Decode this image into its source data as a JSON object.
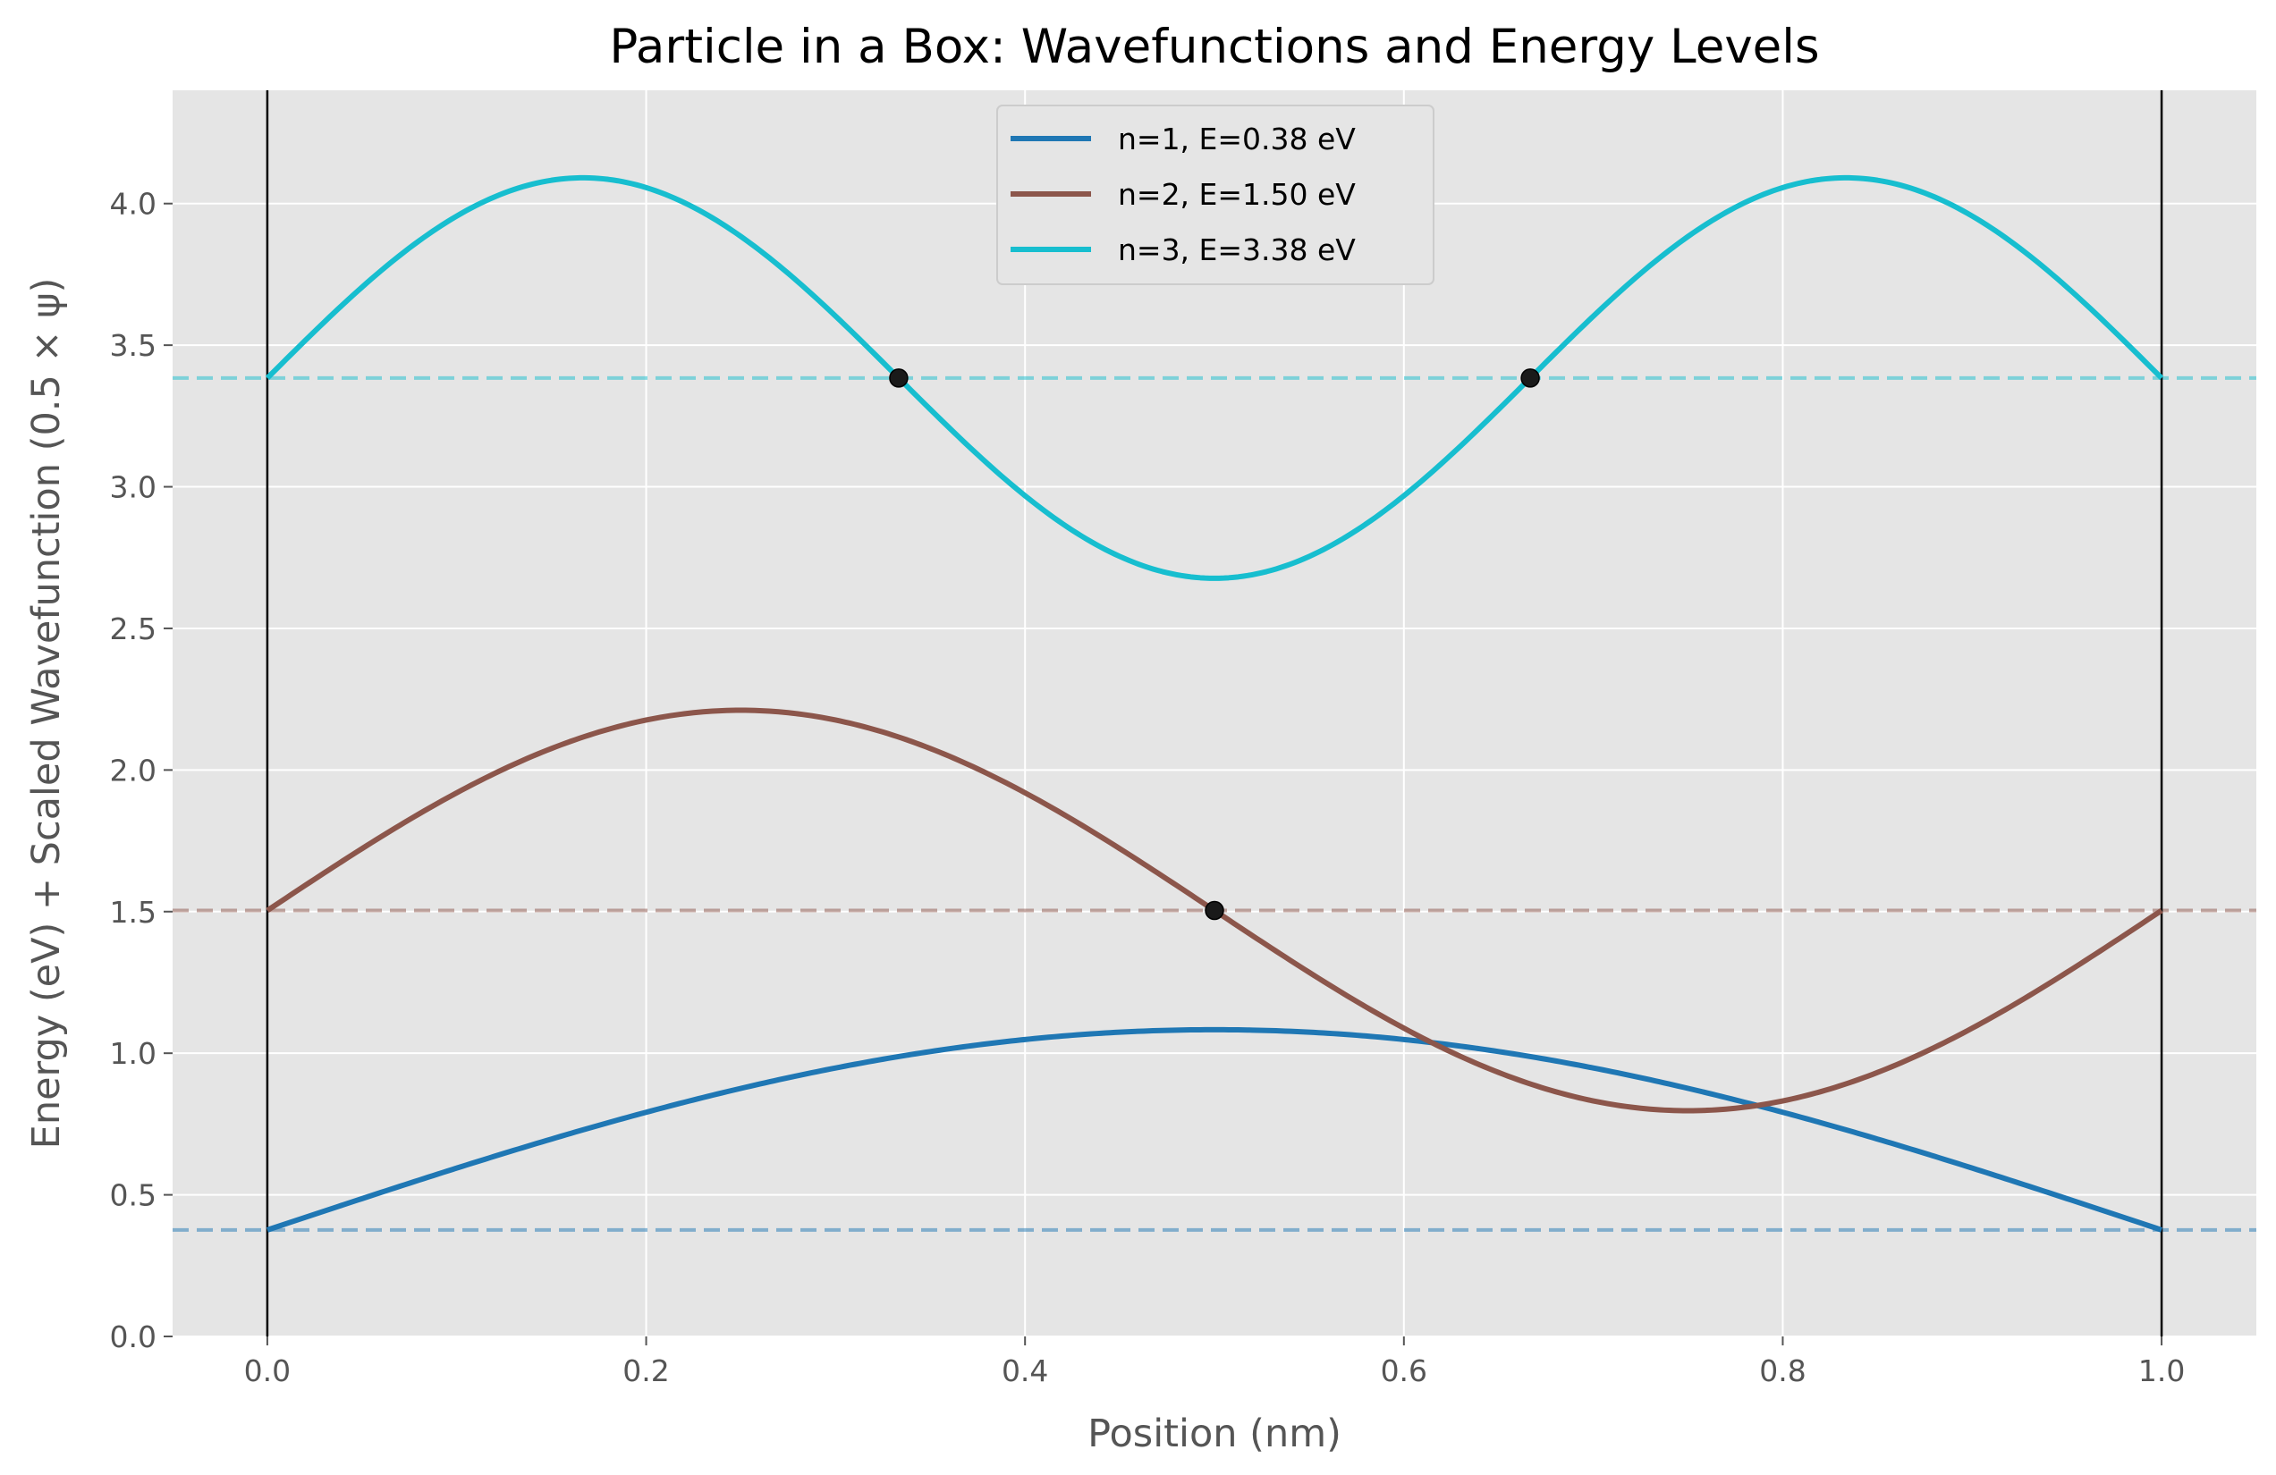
{
  "chart_data": {
    "type": "line",
    "title": "Particle in a Box: Wavefunctions and Energy Levels",
    "xlabel": "Position (nm)",
    "ylabel": "Energy (eV) + Scaled Wavefunction (0.5 × ψ)",
    "xlim": [
      -0.05,
      1.05
    ],
    "ylim": [
      0,
      4.4
    ],
    "x_ticks": [
      0.0,
      0.2,
      0.4,
      0.6,
      0.8,
      1.0
    ],
    "x_tick_labels": [
      "0.0",
      "0.2",
      "0.4",
      "0.6",
      "0.8",
      "1.0"
    ],
    "y_ticks": [
      0.0,
      0.5,
      1.0,
      1.5,
      2.0,
      2.5,
      3.0,
      3.5,
      4.0
    ],
    "y_tick_labels": [
      "0.0",
      "0.5",
      "1.0",
      "1.5",
      "2.0",
      "2.5",
      "3.0",
      "3.5",
      "4.0"
    ],
    "grid": true,
    "legend_position": "top-center",
    "box_walls_x": [
      0.0,
      1.0
    ],
    "series": [
      {
        "name": "n=1, E=0.38 eV",
        "n": 1,
        "energy": 0.376,
        "amplitude": 0.707,
        "color": "#1f77b4",
        "nodes": []
      },
      {
        "name": "n=2, E=1.50 eV",
        "n": 2,
        "energy": 1.504,
        "amplitude": 0.707,
        "color": "#8c564b",
        "nodes": [
          0.5
        ]
      },
      {
        "name": "n=3, E=3.38 eV",
        "n": 3,
        "energy": 3.384,
        "amplitude": 0.707,
        "color": "#17becf",
        "nodes": [
          0.3333,
          0.6667
        ]
      }
    ],
    "colors": {
      "plot_bg": "#e5e5e5",
      "grid": "#ffffff",
      "wall": "#000000",
      "node": "#1a1a1a"
    }
  }
}
